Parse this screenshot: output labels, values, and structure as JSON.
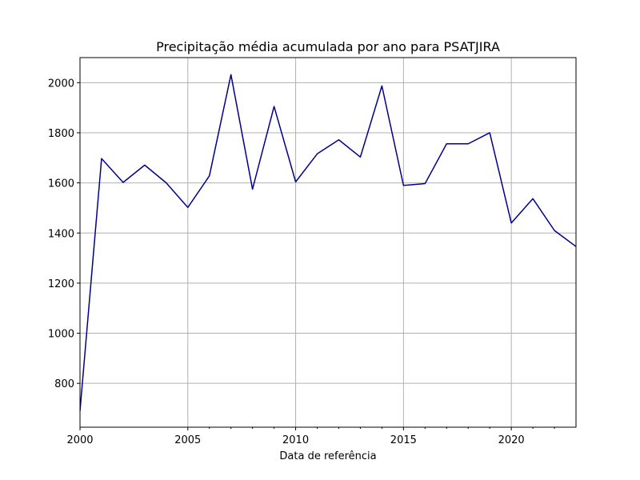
{
  "chart_data": {
    "type": "line",
    "title": "Precipitação média acumulada por ano para PSATJIRA",
    "xlabel": "Data de referência",
    "ylabel": "",
    "xlim": [
      2000,
      2023
    ],
    "ylim": [
      625,
      2100
    ],
    "x_major_ticks": [
      2000,
      2005,
      2010,
      2015,
      2020
    ],
    "x_minor_ticks": [
      2006,
      2007,
      2008,
      2009,
      2011,
      2012,
      2013,
      2014,
      2016,
      2017,
      2018,
      2019,
      2021,
      2022
    ],
    "y_ticks": [
      800,
      1000,
      1200,
      1400,
      1600,
      1800,
      2000
    ],
    "grid": true,
    "line_color": "#00008b",
    "series": [
      {
        "x": [
          2000,
          2001,
          2002,
          2003,
          2004,
          2005,
          2006,
          2007,
          2008,
          2009,
          2010,
          2011,
          2012,
          2013,
          2014,
          2015,
          2016,
          2017,
          2018,
          2019,
          2020,
          2021,
          2022,
          2023
        ],
        "values": [
          690,
          1697,
          1602,
          1671,
          1600,
          1502,
          1628,
          2032,
          1575,
          1905,
          1604,
          1716,
          1772,
          1703,
          1987,
          1590,
          1597,
          1756,
          1756,
          1800,
          1440,
          1537,
          1410,
          1346
        ]
      }
    ]
  }
}
